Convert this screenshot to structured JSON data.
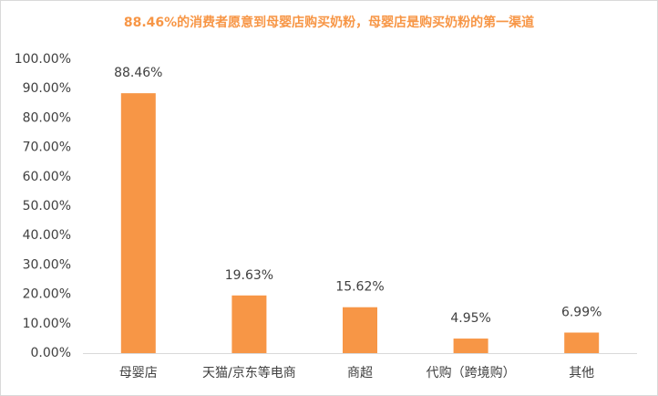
{
  "chart_data": {
    "type": "bar",
    "title": "88.46%的消费者愿意到母婴店购买奶粉，母婴店是购买奶粉的第一渠道",
    "categories": [
      "母婴店",
      "天猫/京东等电商",
      "商超",
      "代购（跨境购）",
      "其他"
    ],
    "values": [
      88.46,
      19.63,
      15.62,
      4.95,
      6.99
    ],
    "value_labels": [
      "88.46%",
      "19.63%",
      "15.62%",
      "4.95%",
      "6.99%"
    ],
    "color": "#f79646",
    "title_color": "#f79646",
    "ylim": [
      0,
      100
    ],
    "yticks": [
      {
        "value": 0,
        "label": "0.00%"
      },
      {
        "value": 10,
        "label": "10.00%"
      },
      {
        "value": 20,
        "label": "20.00%"
      },
      {
        "value": 30,
        "label": "30.00%"
      },
      {
        "value": 40,
        "label": "40.00%"
      },
      {
        "value": 50,
        "label": "50.00%"
      },
      {
        "value": 60,
        "label": "60.00%"
      },
      {
        "value": 70,
        "label": "70.00%"
      },
      {
        "value": 80,
        "label": "80.00%"
      },
      {
        "value": 90,
        "label": "90.00%"
      },
      {
        "value": 100,
        "label": "100.00%"
      }
    ],
    "grid": false
  }
}
